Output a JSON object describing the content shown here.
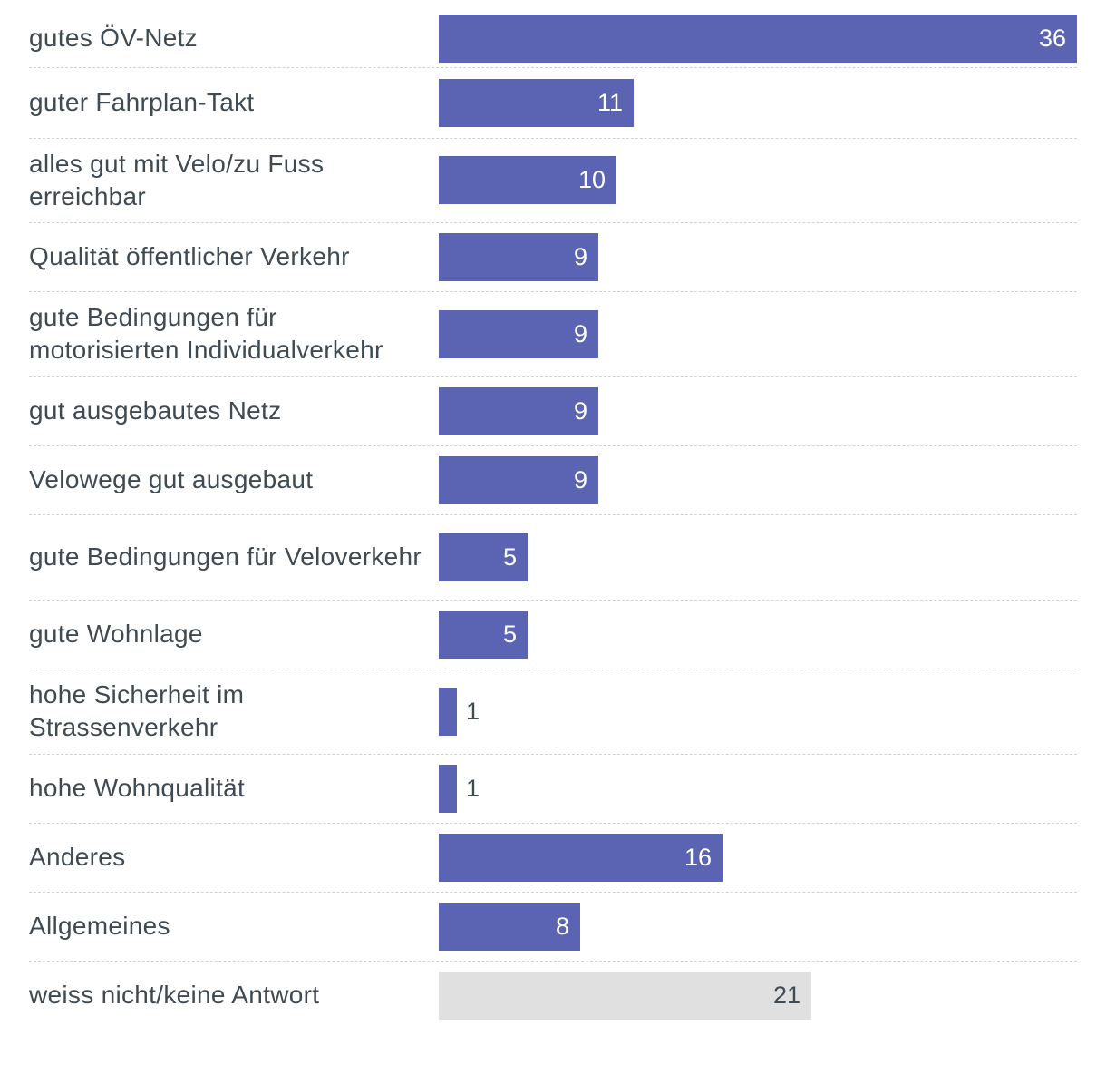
{
  "chart_data": {
    "type": "bar",
    "orientation": "horizontal",
    "categories": [
      "gutes ÖV-Netz",
      "guter Fahrplan-Takt",
      "alles gut mit Velo/zu Fuss erreichbar",
      "Qualität öffentlicher Verkehr",
      "gute Bedingungen für motorisierten Individualverkehr",
      "gut ausgebautes Netz",
      "Velowege gut ausgebaut",
      "gute Bedingungen für Veloverkehr",
      "gute Wohnlage",
      "hohe Sicherheit im Strassenverkehr",
      "hohe Wohnqualität",
      "Anderes",
      "Allgemeines",
      "weiss nicht/keine Antwort"
    ],
    "values": [
      36,
      11,
      10,
      9,
      9,
      9,
      9,
      5,
      5,
      1,
      1,
      16,
      8,
      21
    ],
    "bar_colors": [
      "#5b64b3",
      "#5b64b3",
      "#5b64b3",
      "#5b64b3",
      "#5b64b3",
      "#5b64b3",
      "#5b64b3",
      "#5b64b3",
      "#5b64b3",
      "#5b64b3",
      "#5b64b3",
      "#5b64b3",
      "#5b64b3",
      "#e0e0e0"
    ],
    "xlim": [
      0,
      36
    ],
    "title": "",
    "xlabel": "",
    "ylabel": "",
    "grid": false,
    "legend": "none",
    "colors": {
      "primary_bar": "#5b64b3",
      "neutral_bar": "#e0e0e0",
      "value_on_bar": "#ffffff",
      "value_outside": "#3f4a52",
      "label_text": "#3f4a52",
      "separator": "#cfd3d6"
    }
  }
}
